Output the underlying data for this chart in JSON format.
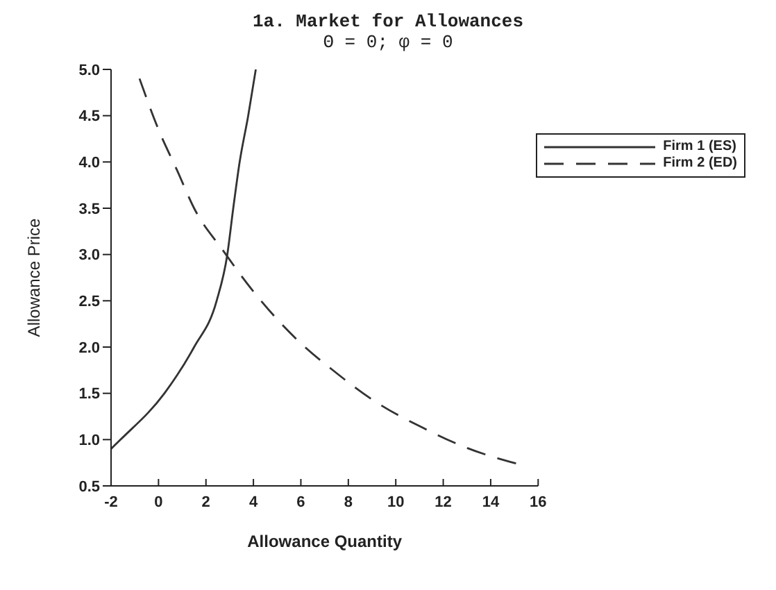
{
  "chart_data": {
    "type": "line",
    "title": "1a. Market for Allowances",
    "subtitle": "Θ = 0; φ = 0",
    "xlabel": "Allowance Quantity",
    "ylabel": "Allowance Price",
    "series": [
      {
        "name": "Firm 1 (ES)",
        "color": "#333333",
        "line_style": "solid",
        "x": [
          -2,
          -1.6,
          0.25,
          1.5,
          2.45,
          2.9,
          3.15,
          3.42,
          3.78,
          4.1
        ],
        "values": [
          0.9,
          1.0,
          1.5,
          2.0,
          2.5,
          3.0,
          3.5,
          4.0,
          4.5,
          5.0
        ]
      },
      {
        "name": "Firm 2 (ED)",
        "color": "#333333",
        "line_style": "dashed",
        "x": [
          -0.8,
          0,
          0.8,
          1.5,
          2.7,
          4,
          6,
          7.3,
          9.2,
          11.2,
          13,
          15.1
        ],
        "values": [
          4.9,
          4.35,
          3.9,
          3.5,
          3.05,
          2.6,
          2.04,
          1.76,
          1.4,
          1.12,
          0.91,
          0.74
        ]
      }
    ],
    "xlim": [
      -2,
      16
    ],
    "xticks": [
      -2,
      0,
      2,
      4,
      6,
      8,
      10,
      12,
      14,
      16
    ],
    "ylim": [
      0.5,
      5.0
    ],
    "yticks": [
      {
        "value": 0.5,
        "label": "0.5"
      },
      {
        "value": 1,
        "label": "1.0"
      },
      {
        "value": 1.5,
        "label": "1.5"
      },
      {
        "value": 2,
        "label": "2.0"
      },
      {
        "value": 2.5,
        "label": "2.5"
      },
      {
        "value": 3,
        "label": "3.0"
      },
      {
        "value": 3.5,
        "label": "3.5"
      },
      {
        "value": 4,
        "label": "4.0"
      },
      {
        "value": 4.5,
        "label": "4.5"
      },
      {
        "value": 5,
        "label": "5.0"
      }
    ],
    "grid": false,
    "legend": "top right",
    "marker": "none"
  }
}
